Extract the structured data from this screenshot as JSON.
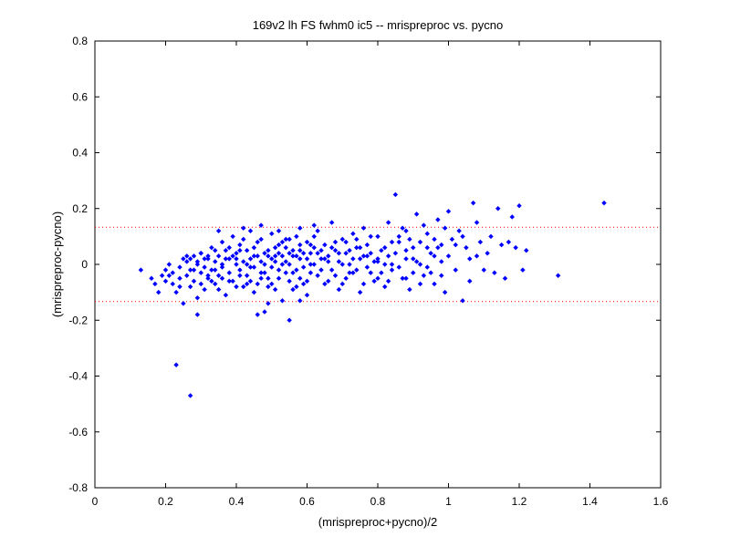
{
  "chart_data": {
    "type": "scatter",
    "title": "169v2 lh FS fwhm0 ic5 -- mrispreproc vs. pycno",
    "xlabel": "(mrispreproc+pycno)/2",
    "ylabel": "(mrispreproc-pycno)",
    "xlim": [
      0,
      1.6
    ],
    "ylim": [
      -0.8,
      0.8
    ],
    "xticks": [
      "0",
      "0.2",
      "0.4",
      "0.6",
      "0.8",
      "1",
      "1.2",
      "1.4",
      "1.6"
    ],
    "yticks": [
      "-0.8",
      "-0.6",
      "-0.4",
      "-0.2",
      "0",
      "0.2",
      "0.4",
      "0.6",
      "0.8"
    ],
    "grid": false,
    "marker_color": "#0000ff",
    "reference_lines": [
      {
        "y": 0.133,
        "color": "#ff0000",
        "style": "dotted"
      },
      {
        "y": -0.133,
        "color": "#ff0000",
        "style": "dotted"
      }
    ],
    "points": [
      [
        0.13,
        -0.02
      ],
      [
        0.16,
        -0.05
      ],
      [
        0.17,
        -0.07
      ],
      [
        0.18,
        -0.1
      ],
      [
        0.19,
        -0.04
      ],
      [
        0.2,
        -0.02
      ],
      [
        0.2,
        -0.06
      ],
      [
        0.21,
        0.0
      ],
      [
        0.22,
        -0.03
      ],
      [
        0.22,
        -0.07
      ],
      [
        0.23,
        -0.1
      ],
      [
        0.24,
        -0.01
      ],
      [
        0.24,
        -0.05
      ],
      [
        0.25,
        0.02
      ],
      [
        0.25,
        -0.14
      ],
      [
        0.26,
        -0.04
      ],
      [
        0.26,
        0.01
      ],
      [
        0.27,
        -0.08
      ],
      [
        0.27,
        -0.02
      ],
      [
        0.28,
        0.03
      ],
      [
        0.28,
        -0.06
      ],
      [
        0.29,
        0.0
      ],
      [
        0.29,
        -0.12
      ],
      [
        0.3,
        -0.03
      ],
      [
        0.3,
        0.04
      ],
      [
        0.31,
        -0.01
      ],
      [
        0.31,
        -0.09
      ],
      [
        0.32,
        0.02
      ],
      [
        0.32,
        -0.05
      ],
      [
        0.33,
        -0.02
      ],
      [
        0.33,
        0.06
      ],
      [
        0.34,
        -0.07
      ],
      [
        0.34,
        0.01
      ],
      [
        0.35,
        0.03
      ],
      [
        0.35,
        -0.04
      ],
      [
        0.36,
        0.08
      ],
      [
        0.36,
        -0.01
      ],
      [
        0.37,
        -0.11
      ],
      [
        0.37,
        0.05
      ],
      [
        0.38,
        -0.03
      ],
      [
        0.38,
        0.02
      ],
      [
        0.39,
        0.1
      ],
      [
        0.39,
        -0.06
      ],
      [
        0.4,
        0.0
      ],
      [
        0.4,
        0.04
      ],
      [
        0.41,
        -0.02
      ],
      [
        0.41,
        0.07
      ],
      [
        0.42,
        -0.08
      ],
      [
        0.42,
        0.01
      ],
      [
        0.43,
        0.05
      ],
      [
        0.43,
        -0.04
      ],
      [
        0.44,
        0.12
      ],
      [
        0.44,
        0.02
      ],
      [
        0.45,
        -0.01
      ],
      [
        0.45,
        0.06
      ],
      [
        0.46,
        -0.07
      ],
      [
        0.46,
        0.03
      ],
      [
        0.47,
        0.09
      ],
      [
        0.47,
        -0.03
      ],
      [
        0.48,
        0.0
      ],
      [
        0.48,
        -0.17
      ],
      [
        0.49,
        0.05
      ],
      [
        0.49,
        -0.05
      ],
      [
        0.5,
        0.02
      ],
      [
        0.5,
        0.11
      ],
      [
        0.51,
        -0.09
      ],
      [
        0.51,
        0.03
      ],
      [
        0.52,
        0.07
      ],
      [
        0.52,
        -0.02
      ],
      [
        0.53,
        0.0
      ],
      [
        0.53,
        -0.13
      ],
      [
        0.54,
        0.06
      ],
      [
        0.54,
        0.01
      ],
      [
        0.55,
        -0.06
      ],
      [
        0.55,
        0.09
      ],
      [
        0.56,
        0.03
      ],
      [
        0.56,
        -0.03
      ],
      [
        0.57,
        0.1
      ],
      [
        0.57,
        -0.08
      ],
      [
        0.58,
        0.02
      ],
      [
        0.58,
        0.05
      ],
      [
        0.59,
        -0.01
      ],
      [
        0.6,
        0.08
      ],
      [
        0.6,
        -0.11
      ],
      [
        0.61,
        0.04
      ],
      [
        0.61,
        0.0
      ],
      [
        0.62,
        0.06
      ],
      [
        0.63,
        -0.04
      ],
      [
        0.63,
        0.12
      ],
      [
        0.64,
        0.02
      ],
      [
        0.65,
        -0.07
      ],
      [
        0.65,
        0.07
      ],
      [
        0.66,
        0.03
      ],
      [
        0.67,
        -0.02
      ],
      [
        0.67,
        0.15
      ],
      [
        0.68,
        0.05
      ],
      [
        0.69,
        -0.09
      ],
      [
        0.69,
        0.01
      ],
      [
        0.7,
        0.09
      ],
      [
        0.71,
        -0.05
      ],
      [
        0.71,
        0.04
      ],
      [
        0.72,
        0.0
      ],
      [
        0.73,
        0.11
      ],
      [
        0.73,
        -0.03
      ],
      [
        0.74,
        0.06
      ],
      [
        0.75,
        -0.1
      ],
      [
        0.75,
        0.02
      ],
      [
        0.76,
        0.13
      ],
      [
        0.77,
        -0.01
      ],
      [
        0.77,
        0.07
      ],
      [
        0.78,
        0.04
      ],
      [
        0.79,
        -0.06
      ],
      [
        0.8,
        0.1
      ],
      [
        0.8,
        0.01
      ],
      [
        0.81,
        0.05
      ],
      [
        0.82,
        -0.08
      ],
      [
        0.83,
        0.15
      ],
      [
        0.83,
        0.03
      ],
      [
        0.84,
        -0.02
      ],
      [
        0.85,
        0.25
      ],
      [
        0.86,
        0.08
      ],
      [
        0.87,
        -0.05
      ],
      [
        0.88,
        0.12
      ],
      [
        0.88,
        0.02
      ],
      [
        0.89,
        -0.09
      ],
      [
        0.9,
        0.06
      ],
      [
        0.91,
        0.18
      ],
      [
        0.92,
        0.0
      ],
      [
        0.93,
        -0.04
      ],
      [
        0.94,
        0.11
      ],
      [
        0.95,
        0.04
      ],
      [
        0.96,
        -0.07
      ],
      [
        0.97,
        0.16
      ],
      [
        0.98,
        0.07
      ],
      [
        0.99,
        -0.1
      ],
      [
        1.0,
        0.19
      ],
      [
        1.0,
        0.03
      ],
      [
        1.01,
        0.09
      ],
      [
        1.02,
        -0.02
      ],
      [
        1.03,
        0.12
      ],
      [
        1.04,
        -0.13
      ],
      [
        1.05,
        0.06
      ],
      [
        1.06,
        0.02
      ],
      [
        1.07,
        0.22
      ],
      [
        1.08,
        0.15
      ],
      [
        1.09,
        0.08
      ],
      [
        1.1,
        -0.02
      ],
      [
        1.11,
        0.04
      ],
      [
        1.14,
        0.2
      ],
      [
        1.15,
        0.07
      ],
      [
        1.16,
        -0.05
      ],
      [
        1.18,
        0.17
      ],
      [
        1.19,
        0.06
      ],
      [
        1.2,
        0.21
      ],
      [
        1.21,
        -0.02
      ],
      [
        1.22,
        0.05
      ],
      [
        1.31,
        -0.04
      ],
      [
        1.44,
        0.22
      ],
      [
        0.23,
        -0.36
      ],
      [
        0.27,
        -0.47
      ],
      [
        0.29,
        -0.18
      ],
      [
        0.46,
        -0.18
      ],
      [
        0.49,
        -0.14
      ],
      [
        0.55,
        -0.2
      ],
      [
        0.58,
        -0.13
      ],
      [
        0.35,
        0.12
      ],
      [
        0.42,
        0.13
      ],
      [
        0.47,
        0.14
      ],
      [
        0.52,
        0.12
      ],
      [
        0.58,
        0.13
      ],
      [
        0.62,
        0.14
      ],
      [
        0.3,
        0.04
      ],
      [
        0.32,
        0.03
      ],
      [
        0.34,
        -0.02
      ],
      [
        0.36,
        0.0
      ],
      [
        0.38,
        -0.06
      ],
      [
        0.4,
        0.02
      ],
      [
        0.41,
        -0.04
      ],
      [
        0.43,
        0.0
      ],
      [
        0.44,
        -0.06
      ],
      [
        0.45,
        0.03
      ],
      [
        0.47,
        0.01
      ],
      [
        0.48,
        -0.03
      ],
      [
        0.49,
        0.03
      ],
      [
        0.5,
        -0.01
      ],
      [
        0.51,
        0.01
      ],
      [
        0.52,
        0.04
      ],
      [
        0.53,
        0.03
      ],
      [
        0.54,
        -0.03
      ],
      [
        0.55,
        0.0
      ],
      [
        0.56,
        0.05
      ],
      [
        0.57,
        -0.02
      ],
      [
        0.58,
        -0.05
      ],
      [
        0.59,
        0.04
      ],
      [
        0.6,
        0.02
      ],
      [
        0.61,
        -0.03
      ],
      [
        0.62,
        0.0
      ],
      [
        0.64,
        -0.02
      ],
      [
        0.66,
        0.01
      ],
      [
        0.68,
        -0.04
      ],
      [
        0.7,
        0.0
      ],
      [
        0.72,
        0.05
      ],
      [
        0.74,
        -0.02
      ],
      [
        0.76,
        0.03
      ],
      [
        0.78,
        -0.03
      ],
      [
        0.8,
        0.02
      ],
      [
        0.82,
        0.06
      ],
      [
        0.84,
        0.0
      ],
      [
        0.86,
        -0.01
      ],
      [
        0.88,
        0.05
      ],
      [
        0.9,
        -0.03
      ],
      [
        0.92,
        0.08
      ],
      [
        0.94,
        -0.01
      ],
      [
        0.96,
        0.03
      ],
      [
        0.98,
        0.01
      ],
      [
        0.26,
        0.03
      ],
      [
        0.28,
        -0.02
      ],
      [
        0.3,
        -0.07
      ],
      [
        0.32,
        -0.04
      ],
      [
        0.34,
        0.05
      ],
      [
        0.36,
        -0.05
      ],
      [
        0.38,
        0.06
      ],
      [
        0.4,
        -0.08
      ],
      [
        0.42,
        0.09
      ],
      [
        0.44,
        -0.01
      ],
      [
        0.46,
        0.08
      ],
      [
        0.48,
        0.04
      ],
      [
        0.5,
        -0.07
      ],
      [
        0.52,
        -0.05
      ],
      [
        0.54,
        0.09
      ],
      [
        0.56,
        -0.09
      ],
      [
        0.58,
        0.07
      ],
      [
        0.6,
        -0.06
      ],
      [
        0.62,
        0.1
      ],
      [
        0.64,
        0.05
      ],
      [
        0.66,
        -0.06
      ],
      [
        0.68,
        0.08
      ],
      [
        0.7,
        -0.07
      ],
      [
        0.72,
        -0.03
      ],
      [
        0.74,
        0.09
      ],
      [
        0.76,
        -0.07
      ],
      [
        0.78,
        0.1
      ],
      [
        0.8,
        -0.05
      ],
      [
        0.82,
        0.0
      ],
      [
        0.84,
        0.08
      ],
      [
        0.86,
        0.1
      ],
      [
        0.88,
        -0.05
      ],
      [
        0.9,
        0.02
      ],
      [
        0.92,
        -0.07
      ],
      [
        0.94,
        0.06
      ],
      [
        0.96,
        0.09
      ],
      [
        0.98,
        -0.04
      ],
      [
        1.02,
        0.07
      ],
      [
        1.04,
        0.1
      ],
      [
        1.06,
        -0.06
      ],
      [
        1.08,
        0.03
      ],
      [
        1.12,
        0.1
      ],
      [
        1.13,
        -0.03
      ],
      [
        1.17,
        0.08
      ],
      [
        0.21,
        -0.04
      ],
      [
        0.24,
        -0.08
      ],
      [
        0.27,
        0.02
      ],
      [
        0.29,
        0.01
      ],
      [
        0.31,
        0.02
      ],
      [
        0.33,
        -0.06
      ],
      [
        0.35,
        -0.09
      ],
      [
        0.37,
        0.02
      ],
      [
        0.39,
        0.03
      ],
      [
        0.41,
        0.05
      ],
      [
        0.43,
        -0.07
      ],
      [
        0.45,
        -0.1
      ],
      [
        0.47,
        -0.05
      ],
      [
        0.49,
        -0.08
      ],
      [
        0.51,
        0.06
      ],
      [
        0.53,
        0.08
      ],
      [
        0.55,
        0.04
      ],
      [
        0.57,
        0.03
      ],
      [
        0.59,
        -0.07
      ],
      [
        0.61,
        0.07
      ],
      [
        0.63,
        0.04
      ],
      [
        0.65,
        0.02
      ],
      [
        0.67,
        0.06
      ],
      [
        0.69,
        0.04
      ],
      [
        0.71,
        0.08
      ],
      [
        0.73,
        0.02
      ],
      [
        0.75,
        0.06
      ],
      [
        0.77,
        0.03
      ],
      [
        0.79,
        0.01
      ],
      [
        0.81,
        -0.03
      ],
      [
        0.83,
        -0.06
      ],
      [
        0.85,
        0.04
      ],
      [
        0.87,
        0.13
      ],
      [
        0.89,
        0.09
      ],
      [
        0.91,
        0.01
      ],
      [
        0.93,
        0.14
      ],
      [
        0.95,
        -0.03
      ],
      [
        0.97,
        0.06
      ],
      [
        0.99,
        0.13
      ]
    ]
  }
}
